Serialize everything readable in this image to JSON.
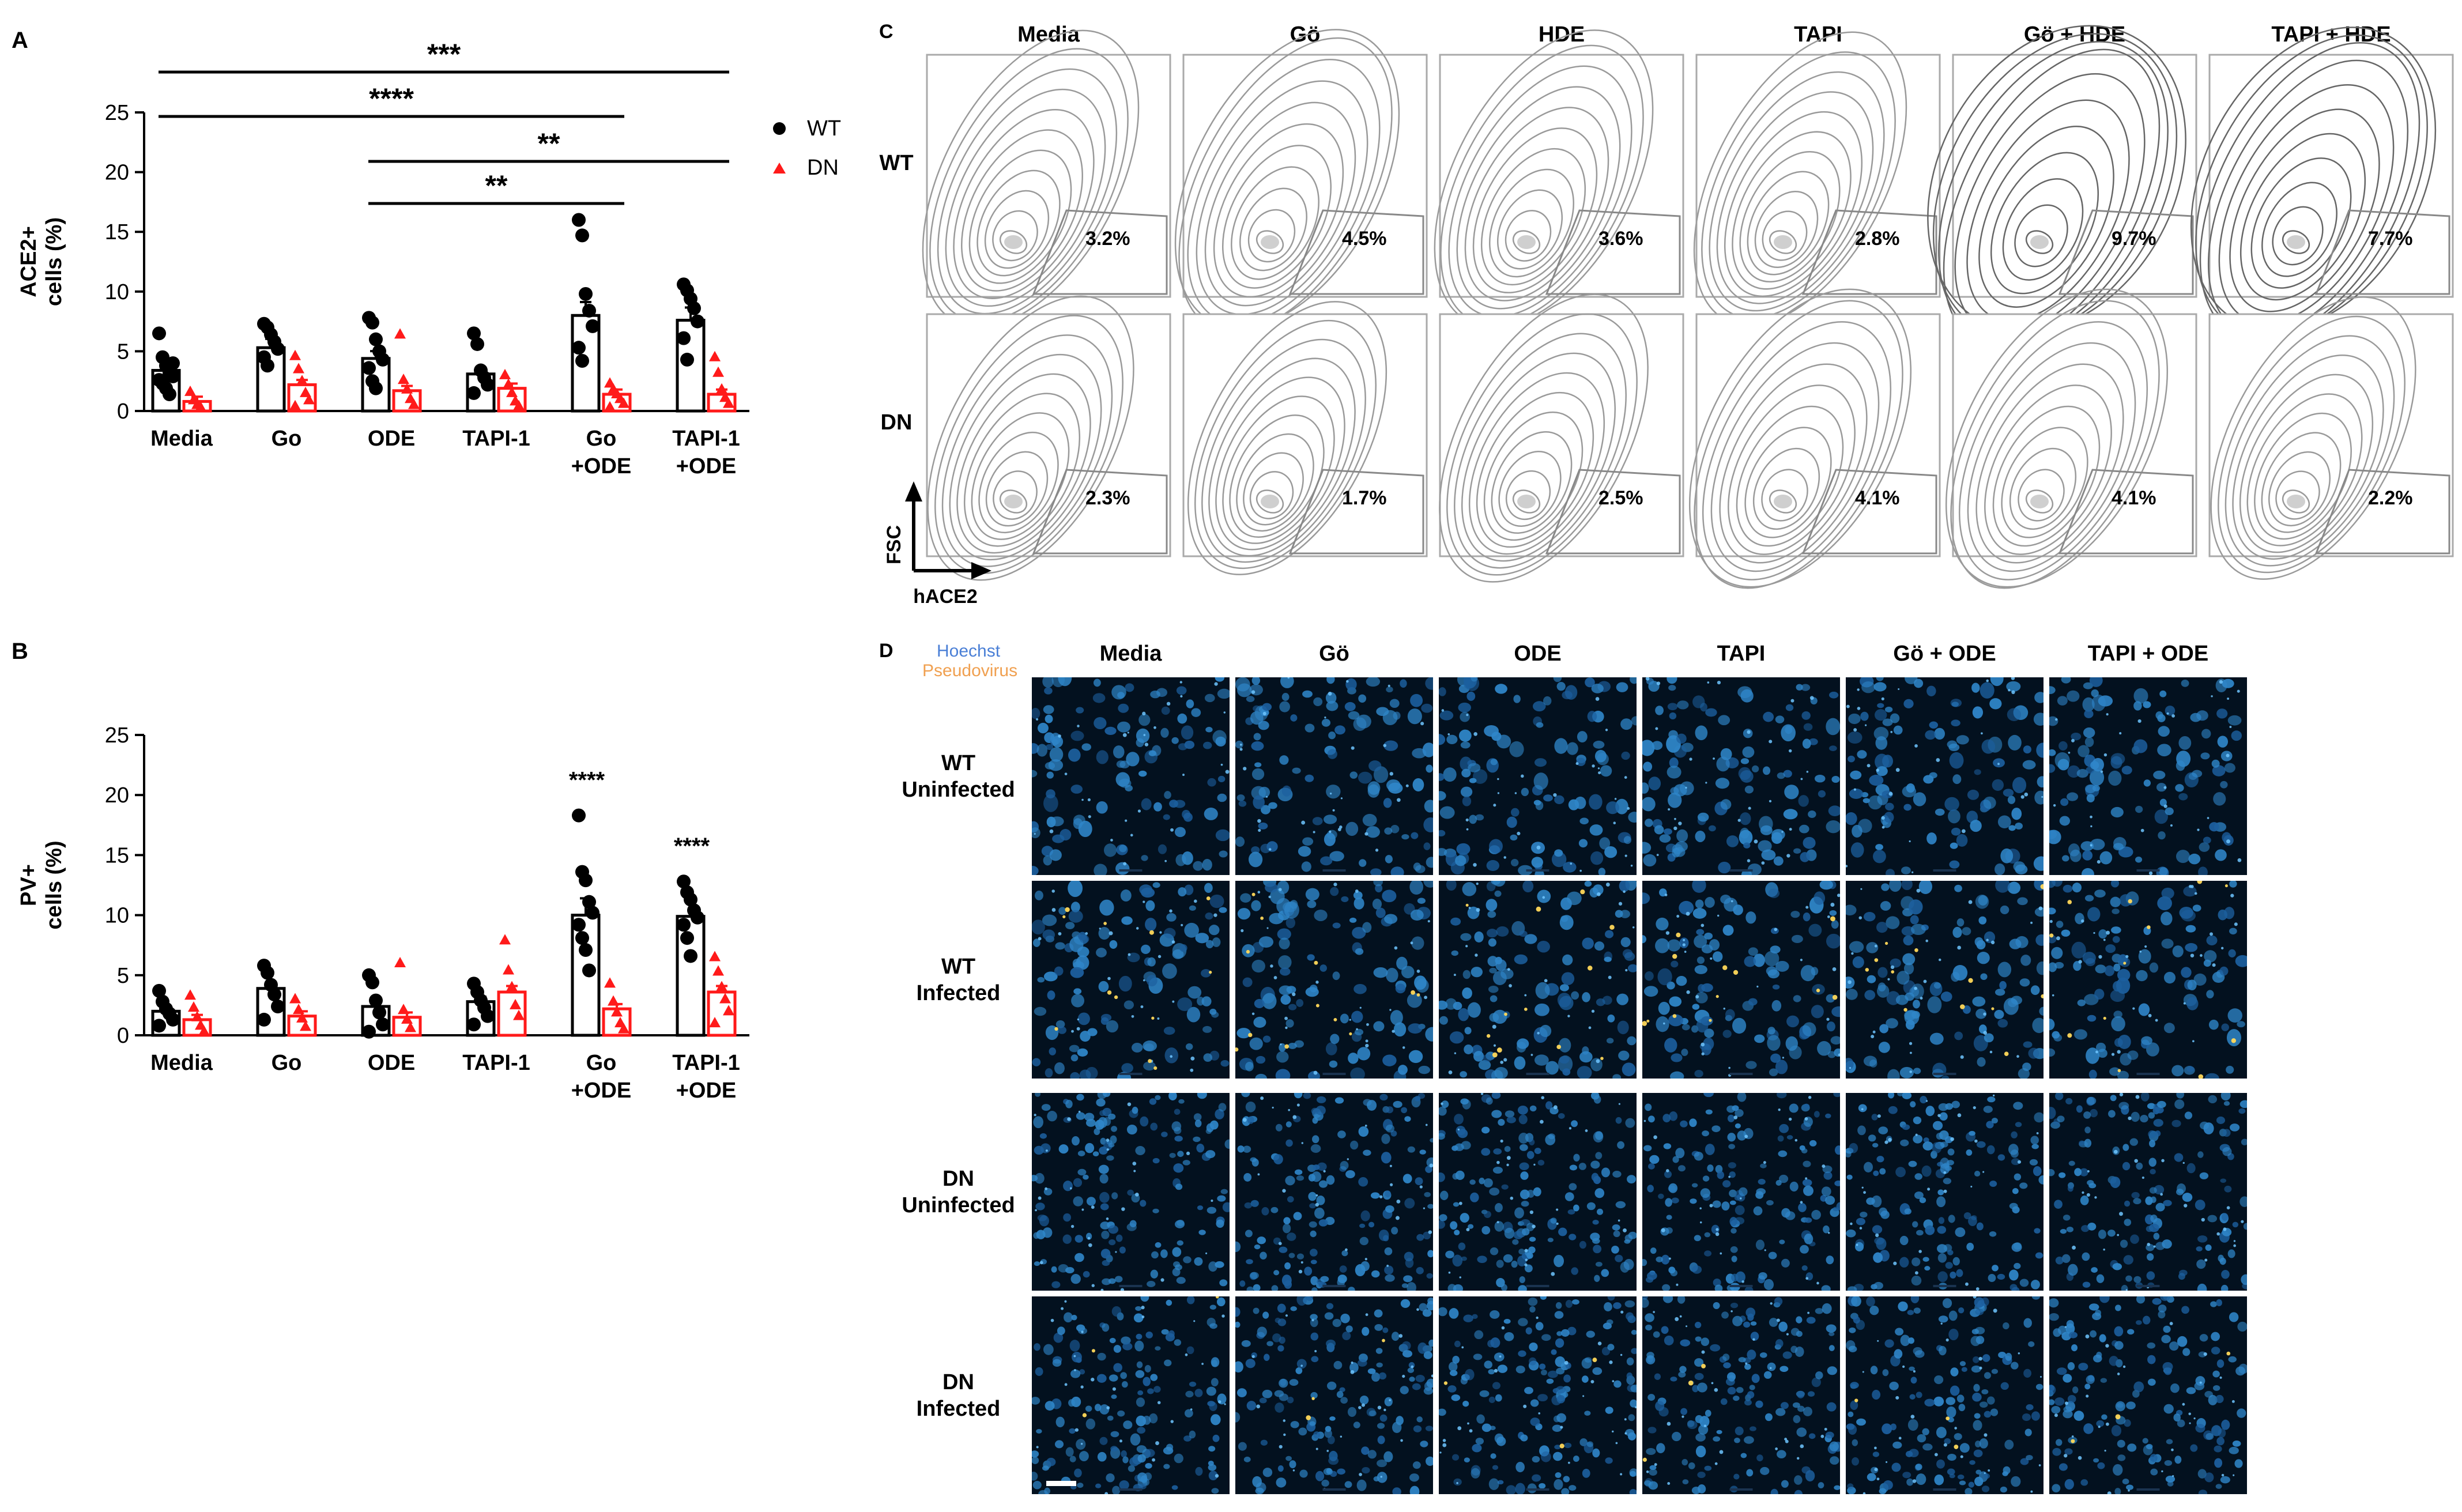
{
  "panels": {
    "A": "A",
    "B": "B",
    "C": "C",
    "D": "D"
  },
  "colors": {
    "wt": "#000000",
    "dn": "#ff1a1a",
    "hoechst": "#4a7fd6",
    "pseudovirus": "#f0a050"
  },
  "legend": {
    "wt": "WT",
    "dn": "DN"
  },
  "chart_data": [
    {
      "type": "bar",
      "panel": "A",
      "categories": [
        "Media",
        "Go",
        "ODE",
        "TAPI-1",
        "Go\n+ODE",
        "TAPI-1\n+ODE"
      ],
      "ylabel": "ACE2+\ncells (%)",
      "ylim": [
        0,
        25
      ],
      "yticks": [
        0,
        5,
        10,
        15,
        20,
        25
      ],
      "series": [
        {
          "name": "WT",
          "values": [
            3.4,
            5.3,
            4.4,
            3.1,
            8.0,
            7.6
          ],
          "points": [
            [
              6.5,
              4.5,
              3.8,
              3.2,
              2.9,
              2.6,
              2.3,
              1.9,
              1.4,
              4.0
            ],
            [
              7.3,
              7.0,
              6.4,
              5.8,
              5.2,
              4.5,
              3.8
            ],
            [
              7.8,
              7.4,
              6.0,
              5.0,
              4.3,
              3.6,
              2.5,
              1.9
            ],
            [
              6.5,
              5.6,
              3.4,
              2.8,
              2.2,
              1.5
            ],
            [
              16.0,
              14.7,
              9.8,
              8.4,
              7.1,
              5.3,
              4.2
            ],
            [
              10.6,
              10.1,
              9.4,
              8.6,
              7.5,
              6.1,
              4.3
            ]
          ]
        },
        {
          "name": "DN",
          "values": [
            0.8,
            2.2,
            1.7,
            1.9,
            1.4,
            1.4
          ],
          "points": [
            [
              1.6,
              0.9,
              0.5,
              0.3
            ],
            [
              4.6,
              3.5,
              2.5,
              1.5,
              0.9,
              0.4
            ],
            [
              6.4,
              2.6,
              1.8,
              1.0,
              0.5
            ],
            [
              3.0,
              2.2,
              1.5,
              0.8,
              0.4
            ],
            [
              2.3,
              1.8,
              1.4,
              1.0,
              0.6,
              0.3
            ],
            [
              4.5,
              3.2,
              1.8,
              1.1,
              0.6
            ]
          ]
        }
      ],
      "significance": [
        {
          "from": 0,
          "to": 5,
          "label": "***"
        },
        {
          "from": 0,
          "to": 4,
          "label": "****"
        },
        {
          "from": 2,
          "to": 5,
          "label": "**"
        },
        {
          "from": 2,
          "to": 4,
          "label": "**"
        }
      ]
    },
    {
      "type": "bar",
      "panel": "B",
      "categories": [
        "Media",
        "Go",
        "ODE",
        "TAPI-1",
        "Go\n+ODE",
        "TAPI-1\n+ODE"
      ],
      "ylabel": "PV+\ncells (%)",
      "ylim": [
        0,
        25
      ],
      "yticks": [
        0,
        5,
        10,
        15,
        20,
        25
      ],
      "series": [
        {
          "name": "WT",
          "values": [
            2.0,
            3.9,
            2.4,
            2.8,
            10.0,
            9.9
          ],
          "points": [
            [
              3.7,
              2.8,
              2.2,
              1.8,
              1.3,
              0.8
            ],
            [
              5.8,
              5.2,
              4.2,
              3.4,
              2.4,
              1.3
            ],
            [
              5.0,
              4.4,
              2.9,
              1.9,
              0.9,
              0.3
            ],
            [
              4.3,
              3.6,
              2.9,
              2.3,
              1.6,
              0.9
            ],
            [
              18.3,
              13.6,
              12.9,
              11.1,
              10.2,
              9.2,
              8.1,
              7.1,
              5.4
            ],
            [
              12.8,
              11.9,
              11.3,
              10.4,
              9.8,
              9.2,
              8.1,
              6.6
            ]
          ]
        },
        {
          "name": "DN",
          "values": [
            1.3,
            1.6,
            1.5,
            3.6,
            2.2,
            3.6
          ],
          "points": [
            [
              3.3,
              2.3,
              1.5,
              0.8,
              0.3
            ],
            [
              3.0,
              2.1,
              1.4,
              0.7
            ],
            [
              6.0,
              2.1,
              1.3,
              0.6
            ],
            [
              7.9,
              5.4,
              4.0,
              2.5,
              1.6
            ],
            [
              4.3,
              2.8,
              1.9,
              1.0,
              0.5
            ],
            [
              6.5,
              5.3,
              4.0,
              3.0,
              2.0,
              1.0
            ]
          ]
        }
      ],
      "annotations": [
        {
          "index": 4,
          "label": "****"
        },
        {
          "index": 5,
          "label": "****"
        }
      ]
    }
  ],
  "flow": {
    "columns": [
      "Media",
      "Gö",
      "HDE",
      "TAPI",
      "Gö + HDE",
      "TAPI + HDE"
    ],
    "rows": [
      {
        "label": "WT",
        "percents": [
          "3.2%",
          "4.5%",
          "3.6%",
          "2.8%",
          "9.7%",
          "7.7%"
        ]
      },
      {
        "label": "DN",
        "percents": [
          "2.3%",
          "1.7%",
          "2.5%",
          "4.1%",
          "4.1%",
          "2.2%"
        ]
      }
    ],
    "y_axis": "FSC",
    "x_axis": "hACE2"
  },
  "micro": {
    "stain_legend": {
      "hoechst": "Hoechst",
      "pseudovirus": "Pseudovirus"
    },
    "columns": [
      "Media",
      "Gö",
      "ODE",
      "TAPI",
      "Gö + ODE",
      "TAPI + ODE"
    ],
    "rows": [
      {
        "line1": "WT",
        "line2": "Uninfected",
        "infected": false,
        "dn": false
      },
      {
        "line1": "WT",
        "line2": "Infected",
        "infected": true,
        "dn": false
      },
      {
        "line1": "DN",
        "line2": "Uninfected",
        "infected": false,
        "dn": true
      },
      {
        "line1": "DN",
        "line2": "Infected",
        "infected": true,
        "dn": true
      }
    ]
  }
}
